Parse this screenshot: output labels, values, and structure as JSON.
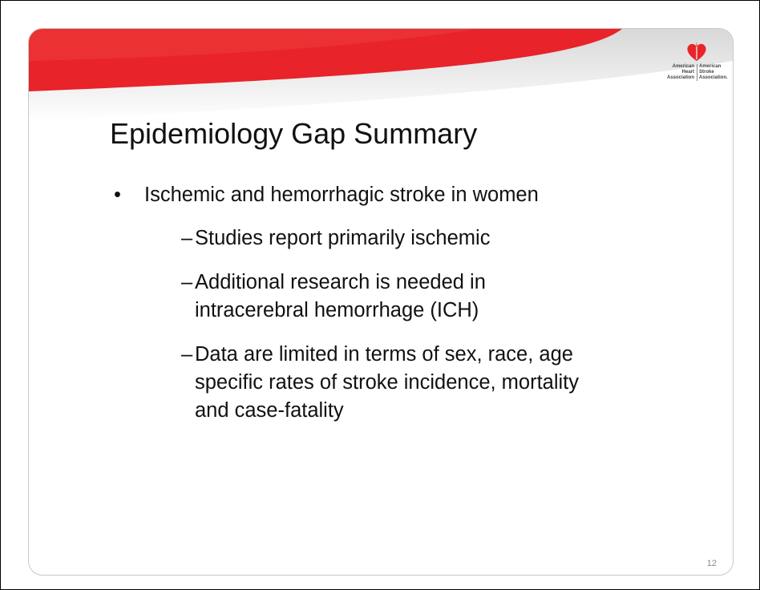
{
  "logo": {
    "left": [
      "American",
      "Heart",
      "Association"
    ],
    "right": [
      "American",
      "Stroke",
      "Association."
    ]
  },
  "slide": {
    "title": "Epidemiology Gap Summary",
    "bullets": [
      {
        "text": "Ischemic and hemorrhagic stroke in women",
        "subitems": [
          {
            "lines": [
              "Studies report primarily ischemic"
            ]
          },
          {
            "lines": [
              "Additional research is needed in",
              "intracerebral hemorrhage (ICH)"
            ]
          },
          {
            "lines": [
              "Data are limited in terms of sex, race, age",
              "specific rates of stroke incidence, mortality",
              "and case-fatality"
            ]
          }
        ]
      }
    ],
    "page_number": "12"
  }
}
